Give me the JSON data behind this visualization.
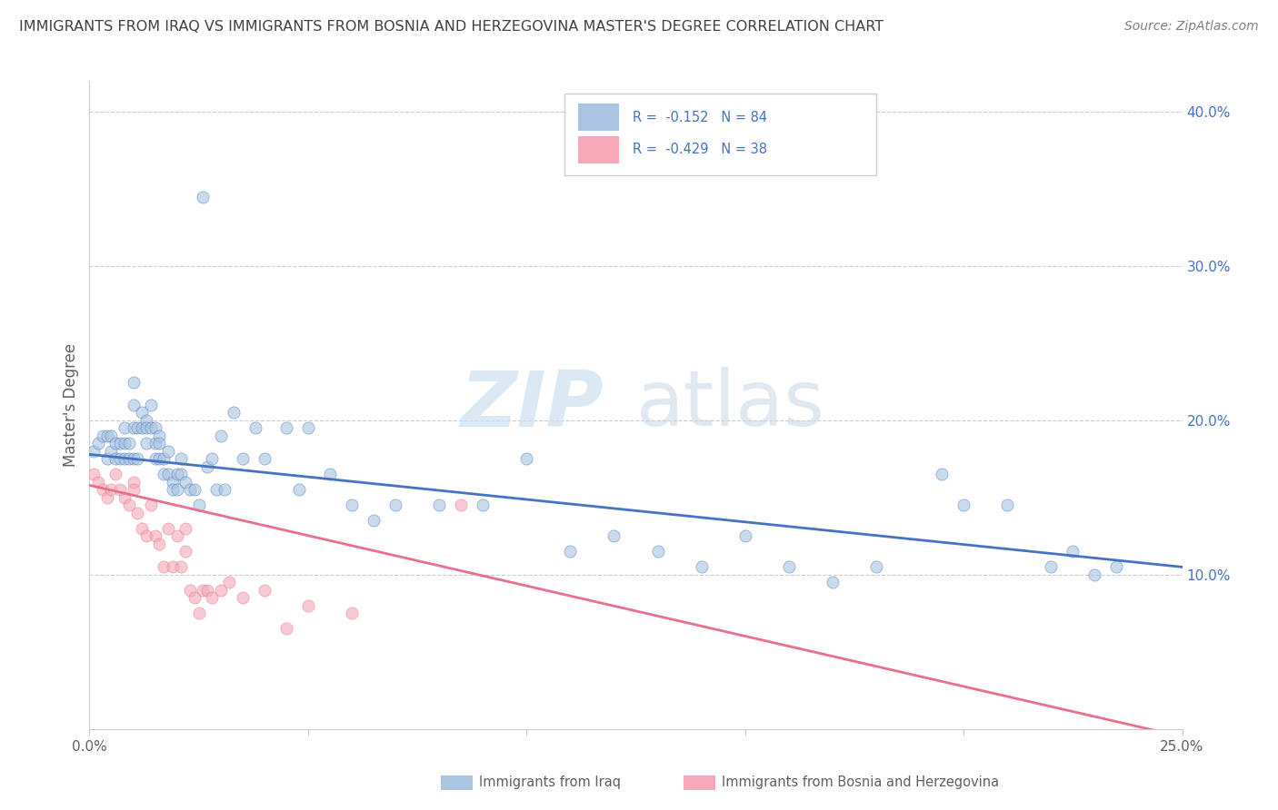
{
  "title": "IMMIGRANTS FROM IRAQ VS IMMIGRANTS FROM BOSNIA AND HERZEGOVINA MASTER'S DEGREE CORRELATION CHART",
  "source": "Source: ZipAtlas.com",
  "ylabel": "Master's Degree",
  "xlim": [
    0.0,
    0.25
  ],
  "ylim": [
    0.0,
    0.42
  ],
  "legend_iraq": "R =  -0.152   N = 84",
  "legend_bosnia": "R =  -0.429   N = 38",
  "legend_label_iraq": "Immigrants from Iraq",
  "legend_label_bosnia": "Immigrants from Bosnia and Herzegovina",
  "iraq_color": "#a8c4e0",
  "bosnia_color": "#f4a8b8",
  "iraq_line_color": "#4472c4",
  "bosnia_line_color": "#e8708a",
  "watermark_zip": "ZIP",
  "watermark_atlas": "atlas",
  "iraq_scatter_x": [
    0.001,
    0.002,
    0.003,
    0.004,
    0.004,
    0.005,
    0.005,
    0.006,
    0.006,
    0.007,
    0.007,
    0.008,
    0.008,
    0.008,
    0.009,
    0.009,
    0.01,
    0.01,
    0.01,
    0.01,
    0.011,
    0.011,
    0.012,
    0.012,
    0.013,
    0.013,
    0.013,
    0.014,
    0.014,
    0.015,
    0.015,
    0.015,
    0.016,
    0.016,
    0.016,
    0.017,
    0.017,
    0.018,
    0.018,
    0.019,
    0.019,
    0.02,
    0.02,
    0.021,
    0.021,
    0.022,
    0.023,
    0.024,
    0.025,
    0.026,
    0.027,
    0.028,
    0.029,
    0.03,
    0.031,
    0.033,
    0.035,
    0.038,
    0.04,
    0.045,
    0.048,
    0.05,
    0.055,
    0.06,
    0.065,
    0.07,
    0.08,
    0.09,
    0.1,
    0.11,
    0.12,
    0.13,
    0.14,
    0.15,
    0.16,
    0.17,
    0.18,
    0.195,
    0.2,
    0.21,
    0.22,
    0.225,
    0.23,
    0.235
  ],
  "iraq_scatter_y": [
    0.18,
    0.185,
    0.19,
    0.175,
    0.19,
    0.18,
    0.19,
    0.185,
    0.175,
    0.175,
    0.185,
    0.195,
    0.185,
    0.175,
    0.185,
    0.175,
    0.225,
    0.195,
    0.21,
    0.175,
    0.195,
    0.175,
    0.205,
    0.195,
    0.2,
    0.195,
    0.185,
    0.21,
    0.195,
    0.195,
    0.185,
    0.175,
    0.19,
    0.185,
    0.175,
    0.175,
    0.165,
    0.18,
    0.165,
    0.16,
    0.155,
    0.165,
    0.155,
    0.175,
    0.165,
    0.16,
    0.155,
    0.155,
    0.145,
    0.345,
    0.17,
    0.175,
    0.155,
    0.19,
    0.155,
    0.205,
    0.175,
    0.195,
    0.175,
    0.195,
    0.155,
    0.195,
    0.165,
    0.145,
    0.135,
    0.145,
    0.145,
    0.145,
    0.175,
    0.115,
    0.125,
    0.115,
    0.105,
    0.125,
    0.105,
    0.095,
    0.105,
    0.165,
    0.145,
    0.145,
    0.105,
    0.115,
    0.1,
    0.105
  ],
  "bosnia_scatter_x": [
    0.001,
    0.002,
    0.003,
    0.004,
    0.005,
    0.006,
    0.007,
    0.008,
    0.009,
    0.01,
    0.01,
    0.011,
    0.012,
    0.013,
    0.014,
    0.015,
    0.016,
    0.017,
    0.018,
    0.019,
    0.02,
    0.021,
    0.022,
    0.022,
    0.023,
    0.024,
    0.025,
    0.026,
    0.027,
    0.028,
    0.03,
    0.032,
    0.035,
    0.04,
    0.045,
    0.05,
    0.06,
    0.085
  ],
  "bosnia_scatter_y": [
    0.165,
    0.16,
    0.155,
    0.15,
    0.155,
    0.165,
    0.155,
    0.15,
    0.145,
    0.16,
    0.155,
    0.14,
    0.13,
    0.125,
    0.145,
    0.125,
    0.12,
    0.105,
    0.13,
    0.105,
    0.125,
    0.105,
    0.13,
    0.115,
    0.09,
    0.085,
    0.075,
    0.09,
    0.09,
    0.085,
    0.09,
    0.095,
    0.085,
    0.09,
    0.065,
    0.08,
    0.075,
    0.145
  ],
  "iraq_trend_x": [
    0.0,
    0.25
  ],
  "iraq_trend_y": [
    0.178,
    0.105
  ],
  "bosnia_trend_x": [
    0.0,
    0.25
  ],
  "bosnia_trend_y": [
    0.158,
    -0.005
  ],
  "y_ticks_right": [
    0.1,
    0.2,
    0.3,
    0.4
  ],
  "y_ticks_right_labels": [
    "10.0%",
    "20.0%",
    "30.0%",
    "40.0%"
  ],
  "x_ticks": [
    0.0,
    0.05,
    0.1,
    0.15,
    0.2,
    0.25
  ],
  "x_ticks_labels": [
    "0.0%",
    "",
    "",
    "",
    "",
    "25.0%"
  ],
  "grid_color": "#cccccc",
  "background_color": "#ffffff",
  "title_color": "#404040",
  "source_color": "#808080",
  "axis_color": "#cccccc"
}
